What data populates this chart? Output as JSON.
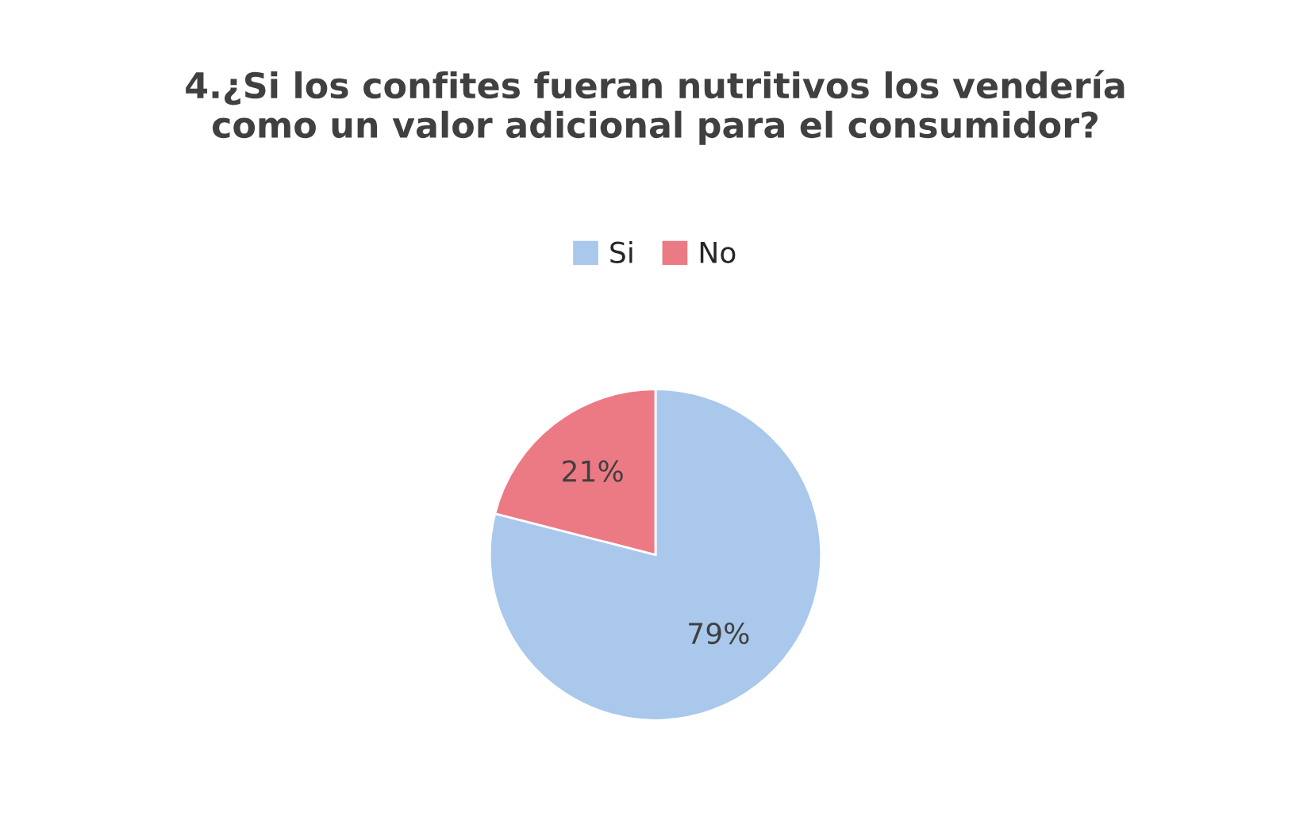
{
  "chart_data": {
    "type": "pie",
    "title": "4.¿Si los confites fueran nutritivos los vendería\ncomo un valor adicional para el consumidor?",
    "categories": [
      "Si",
      "No"
    ],
    "values": [
      79,
      21
    ],
    "colors": [
      "#a9c8ec",
      "#ec7a84"
    ],
    "value_labels": [
      "79%",
      "21%"
    ],
    "legend": "top"
  }
}
